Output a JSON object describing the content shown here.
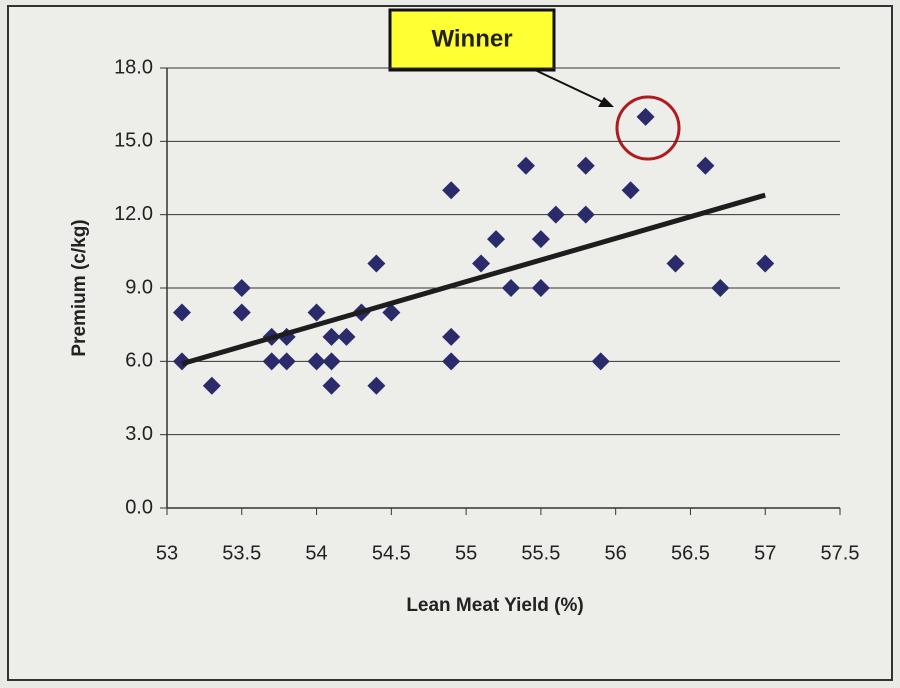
{
  "chart_data": {
    "type": "scatter",
    "xlabel": "Lean Meat Yield (%)",
    "ylabel": "Premium (c/kg)",
    "annotation": "Winner",
    "color": "#2b2a6b",
    "x": [
      53.1,
      53.1,
      53.3,
      53.5,
      53.5,
      53.7,
      53.7,
      53.8,
      53.8,
      54.0,
      54.0,
      54.1,
      54.1,
      54.1,
      54.2,
      54.3,
      54.4,
      54.4,
      54.5,
      54.9,
      54.9,
      54.9,
      55.1,
      55.2,
      55.3,
      55.4,
      55.5,
      55.5,
      55.6,
      55.8,
      55.8,
      55.9,
      56.1,
      56.2,
      56.4,
      56.6,
      56.7,
      57.0
    ],
    "values": [
      8,
      6,
      5,
      9,
      8,
      7,
      6,
      7,
      6,
      8,
      6,
      7,
      6,
      5,
      7,
      8,
      10,
      5,
      8,
      13,
      7,
      6,
      10,
      11,
      9,
      14,
      11,
      9,
      12,
      14,
      12,
      6,
      13,
      16,
      10,
      14,
      9,
      10
    ],
    "trendline": {
      "x": [
        53.1,
        57.0
      ],
      "y": [
        5.9,
        12.8
      ]
    },
    "xlim": [
      53,
      57.5
    ],
    "xticks": [
      53,
      53.5,
      54,
      54.5,
      55,
      55.5,
      56,
      56.5,
      57,
      57.5
    ],
    "ylim": [
      0,
      18
    ],
    "yticks": [
      {
        "value": 0,
        "label": "0.0"
      },
      {
        "value": 3,
        "label": "3.0"
      },
      {
        "value": 6,
        "label": "6.0"
      },
      {
        "value": 9,
        "label": "9.0"
      },
      {
        "value": 12,
        "label": "12.0"
      },
      {
        "value": 15,
        "label": "15.0"
      },
      {
        "value": 18,
        "label": "18.0"
      }
    ],
    "grid": true
  }
}
